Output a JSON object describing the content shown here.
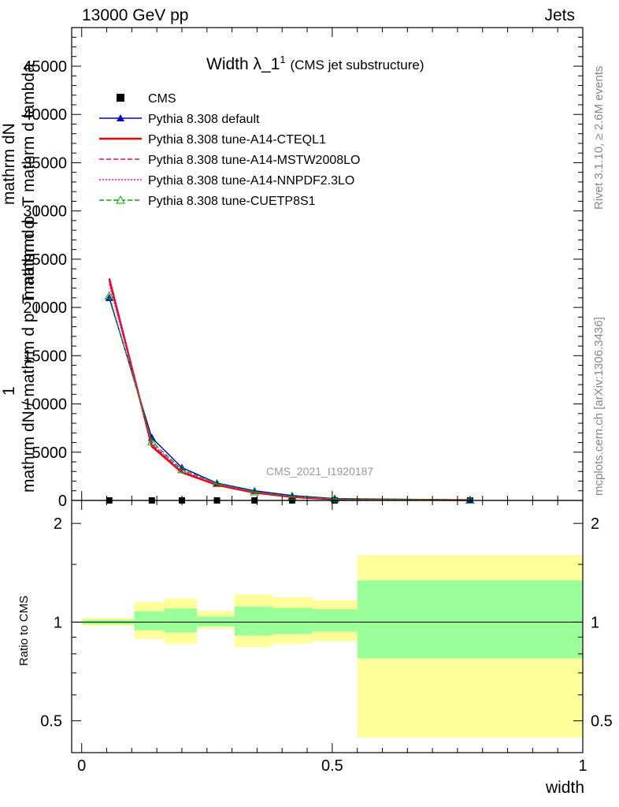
{
  "header": {
    "left": "13000 GeV pp",
    "right": "Jets"
  },
  "side_labels": {
    "rivet": "Rivet 3.1.10, ≥ 2.6M events",
    "mcplots": "mcplots.cern.ch [arXiv:1306.3436]"
  },
  "watermark": "CMS_2021_I1920187",
  "chart_data": [
    {
      "type": "line",
      "title": "Width λ_1^1 (CMS jet substructure)",
      "title_main": "Width λ_1",
      "title_sup": "1",
      "title_sub": "(CMS jet substructure)",
      "ylabel_parts": [
        "1",
        "mathrm dN",
        "mathrm d p_T mathrm d lambda",
        "mathrm dN / mathrm d p_T mathrm d"
      ],
      "ylim": [
        0,
        49000
      ],
      "yticks": [
        0,
        5000,
        10000,
        15000,
        20000,
        25000,
        30000,
        35000,
        40000,
        45000
      ],
      "ytick_labels": [
        "0",
        "5000",
        "10000",
        "15000",
        "20000",
        "25000",
        "30000",
        "35000",
        "40000",
        "45000"
      ],
      "xlim": [
        -0.02,
        1.0
      ],
      "legend_placement": "top-left",
      "series": [
        {
          "name": "CMS",
          "color": "#000000",
          "marker": "square",
          "style": "points",
          "x": [
            0.055,
            0.14,
            0.2,
            0.27,
            0.345,
            0.42,
            0.505,
            0.775
          ],
          "y": [
            0,
            0,
            0,
            0,
            0,
            0,
            0,
            0
          ]
        },
        {
          "name": "Pythia 8.308 default",
          "color": "#0000cc",
          "marker": "triangle-filled",
          "style": "solid",
          "x": [
            0.055,
            0.14,
            0.2,
            0.27,
            0.345,
            0.42,
            0.505,
            0.775
          ],
          "y": [
            21000,
            6500,
            3400,
            1800,
            1000,
            500,
            200,
            50
          ]
        },
        {
          "name": "Pythia 8.308 tune-A14-CTEQL1",
          "color": "#ee0000",
          "marker": "none",
          "style": "solid-thick",
          "x": [
            0.055,
            0.14,
            0.2,
            0.27,
            0.345,
            0.42,
            0.505,
            0.775
          ],
          "y": [
            23000,
            5600,
            2900,
            1600,
            800,
            350,
            120,
            30
          ]
        },
        {
          "name": "Pythia 8.308 tune-A14-MSTW2008LO",
          "color": "#ff0066",
          "marker": "none",
          "style": "dashed",
          "x": [
            0.055,
            0.14,
            0.2,
            0.27,
            0.345,
            0.42,
            0.505,
            0.775
          ],
          "y": [
            22700,
            5800,
            3000,
            1650,
            850,
            380,
            130,
            30
          ]
        },
        {
          "name": "Pythia 8.308 tune-A14-NNPDF2.3LO",
          "color": "#ff00cc",
          "marker": "none",
          "style": "dotted",
          "x": [
            0.055,
            0.14,
            0.2,
            0.27,
            0.345,
            0.42,
            0.505,
            0.775
          ],
          "y": [
            22400,
            5900,
            3100,
            1700,
            880,
            400,
            140,
            35
          ]
        },
        {
          "name": "Pythia 8.308 tune-CUETP8S1",
          "color": "#00aa00",
          "marker": "triangle-open",
          "style": "dashed",
          "x": [
            0.055,
            0.14,
            0.2,
            0.27,
            0.345,
            0.42,
            0.505,
            0.775
          ],
          "y": [
            21200,
            6100,
            3200,
            1750,
            900,
            420,
            160,
            40
          ]
        }
      ]
    },
    {
      "type": "area",
      "title": "",
      "ylabel": "Ratio to CMS",
      "xlabel": "width",
      "ylim": [
        0.4,
        2.35
      ],
      "yscale": "log",
      "yticks": [
        0.5,
        1,
        2
      ],
      "ytick_labels": [
        "0.5",
        "1",
        "2"
      ],
      "xlim": [
        -0.02,
        1.0
      ],
      "xticks": [
        0,
        0.5,
        1
      ],
      "xtick_labels": [
        "0",
        "0.5",
        "1"
      ],
      "bands": [
        {
          "x0": 0.0,
          "x1": 0.105,
          "stat_lo": 0.985,
          "stat_hi": 1.015,
          "tot_lo": 0.975,
          "tot_hi": 1.03
        },
        {
          "x0": 0.105,
          "x1": 0.165,
          "stat_lo": 0.945,
          "stat_hi": 1.08,
          "tot_lo": 0.89,
          "tot_hi": 1.15
        },
        {
          "x0": 0.165,
          "x1": 0.23,
          "stat_lo": 0.93,
          "stat_hi": 1.1,
          "tot_lo": 0.86,
          "tot_hi": 1.18
        },
        {
          "x0": 0.23,
          "x1": 0.305,
          "stat_lo": 0.97,
          "stat_hi": 1.04,
          "tot_lo": 0.955,
          "tot_hi": 1.08
        },
        {
          "x0": 0.305,
          "x1": 0.38,
          "stat_lo": 0.91,
          "stat_hi": 1.115,
          "tot_lo": 0.84,
          "tot_hi": 1.215
        },
        {
          "x0": 0.38,
          "x1": 0.46,
          "stat_lo": 0.92,
          "stat_hi": 1.105,
          "tot_lo": 0.86,
          "tot_hi": 1.19
        },
        {
          "x0": 0.46,
          "x1": 0.55,
          "stat_lo": 0.935,
          "stat_hi": 1.095,
          "tot_lo": 0.875,
          "tot_hi": 1.165
        },
        {
          "x0": 0.55,
          "x1": 1.0,
          "stat_lo": 0.775,
          "stat_hi": 1.34,
          "tot_lo": 0.445,
          "tot_hi": 1.6
        }
      ],
      "stat_color": "#99ff99",
      "total_color": "#ffff99",
      "reference_line": 1
    }
  ]
}
